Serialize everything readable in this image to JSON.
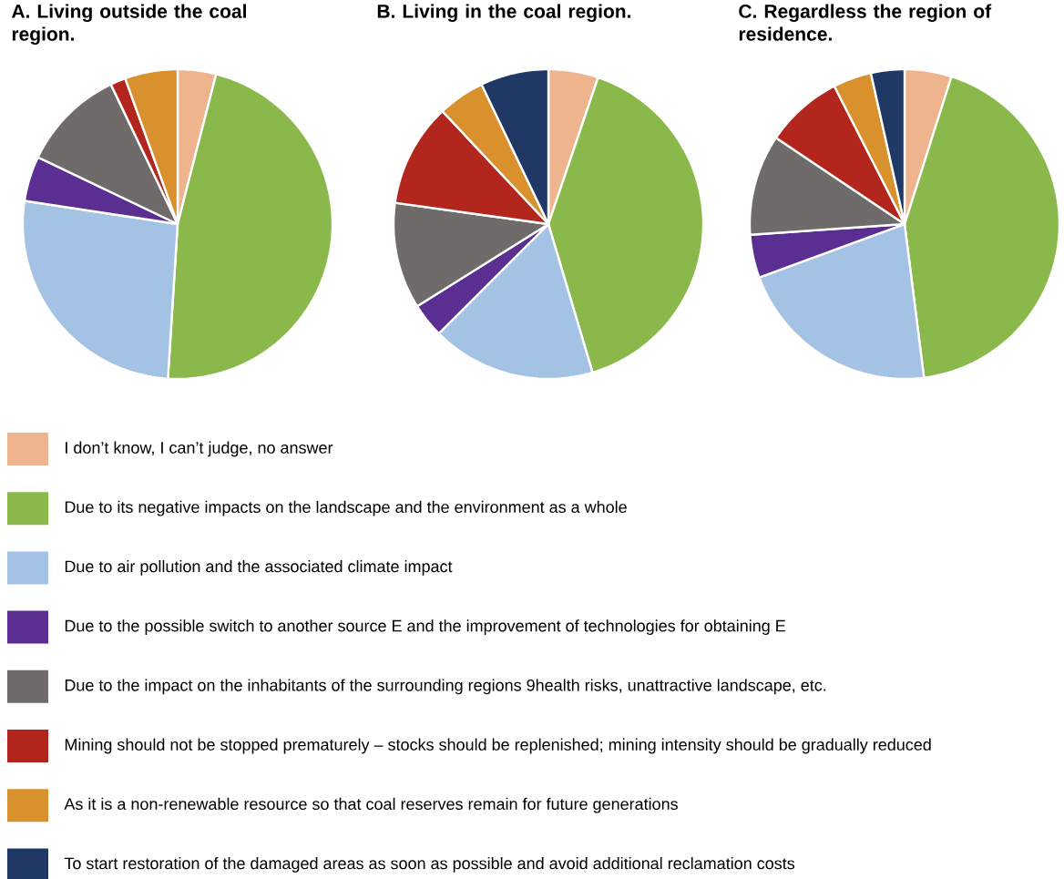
{
  "chart_data": [
    {
      "type": "pie",
      "title": "A. Living outside the coal region.",
      "legend": "bottom",
      "categories": [
        "I don’t know, I can’t judge, no answer",
        "Due to its negative impacts on the landscape and the environment as a whole",
        "Due to air pollution and the associated climate impact",
        "Due to the possible switch to another source E and the improvement of technologies for obtaining E",
        "Due to the impact on the inhabitants of the surrounding regions 9health risks, unattractive landscape, etc.",
        "Mining should not be stopped prematurely – stocks should be replenished; mining intensity should be gradually reduced",
        "As it is a non-renewable resource so that coal reserves remain for future generations",
        "To start restoration of the damaged areas as soon as possible and avoid additional reclamation costs"
      ],
      "values": [
        4,
        47,
        26.4,
        4.7,
        10.8,
        1.6,
        5.5,
        0
      ],
      "colors": [
        "#edb48e",
        "#8ab84a",
        "#a4c2e4",
        "#5b2e91",
        "#6f6b6b",
        "#b3261e",
        "#d9912e",
        "#1f3864"
      ]
    },
    {
      "type": "pie",
      "title": "B. Living in the coal region.",
      "categories": [
        null,
        null,
        null,
        null,
        null,
        null,
        null,
        null
      ],
      "values": [
        5.2,
        40.2,
        17.1,
        3.6,
        11.1,
        10.8,
        4.9,
        7.1
      ],
      "colors": [
        "#edb48e",
        "#8ab84a",
        "#a4c2e4",
        "#5b2e91",
        "#6f6b6b",
        "#b3261e",
        "#d9912e",
        "#1f3864"
      ]
    },
    {
      "type": "pie",
      "title": "C. Regardless the region of residence.",
      "categories": [
        null,
        null,
        null,
        null,
        null,
        null,
        null,
        null
      ],
      "values": [
        4.9,
        43.1,
        21.4,
        4.5,
        10.5,
        8.1,
        4,
        3.5
      ],
      "colors": [
        "#edb48e",
        "#8ab84a",
        "#a4c2e4",
        "#5b2e91",
        "#6f6b6b",
        "#b3261e",
        "#d9912e",
        "#1f3864"
      ]
    }
  ]
}
